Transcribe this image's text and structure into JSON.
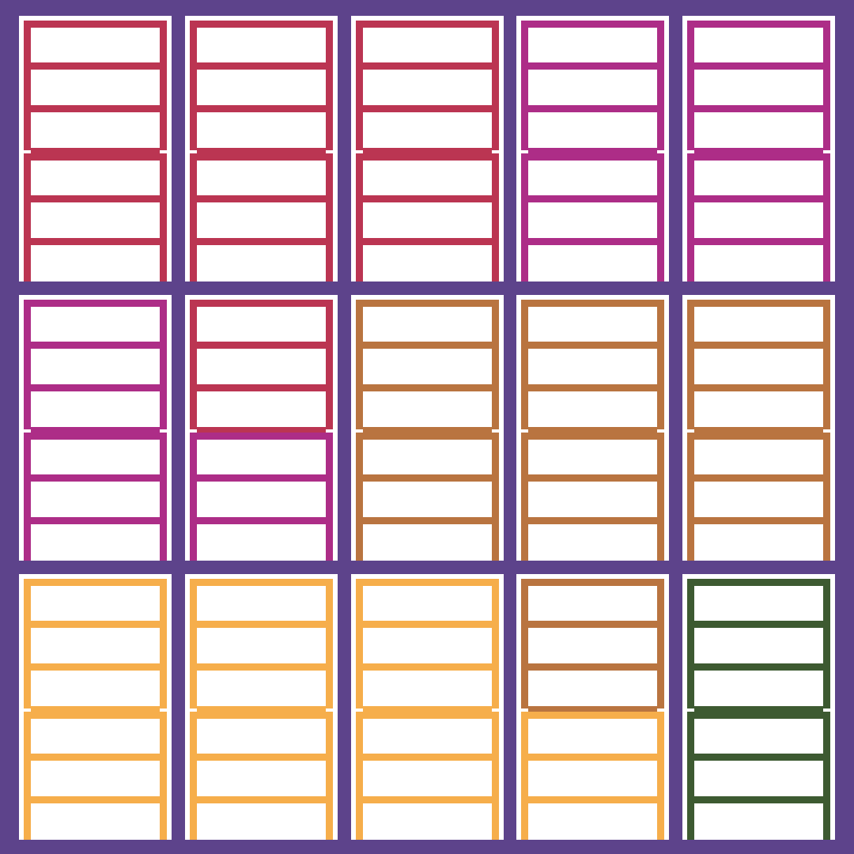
{
  "colors": {
    "frame": "#5d438b",
    "paper": "#ffffff",
    "crimson": "#bb3552",
    "magenta": "#ad2d87",
    "copper": "#b97440",
    "amber": "#f6ae4b",
    "forest": "#3d5a31"
  },
  "grid": {
    "rows": 3,
    "columns": 5,
    "cells": [
      {
        "top": "crimson",
        "bottom": "crimson"
      },
      {
        "top": "crimson",
        "bottom": "crimson"
      },
      {
        "top": "crimson",
        "bottom": "crimson"
      },
      {
        "top": "magenta",
        "bottom": "magenta"
      },
      {
        "top": "magenta",
        "bottom": "magenta"
      },
      {
        "top": "magenta",
        "bottom": "magenta"
      },
      {
        "top": "crimson",
        "bottom": "magenta"
      },
      {
        "top": "copper",
        "bottom": "copper"
      },
      {
        "top": "copper",
        "bottom": "copper"
      },
      {
        "top": "copper",
        "bottom": "copper"
      },
      {
        "top": "amber",
        "bottom": "amber"
      },
      {
        "top": "amber",
        "bottom": "amber"
      },
      {
        "top": "amber",
        "bottom": "amber"
      },
      {
        "top": "copper",
        "bottom": "amber"
      },
      {
        "top": "forest",
        "bottom": "forest"
      }
    ]
  }
}
